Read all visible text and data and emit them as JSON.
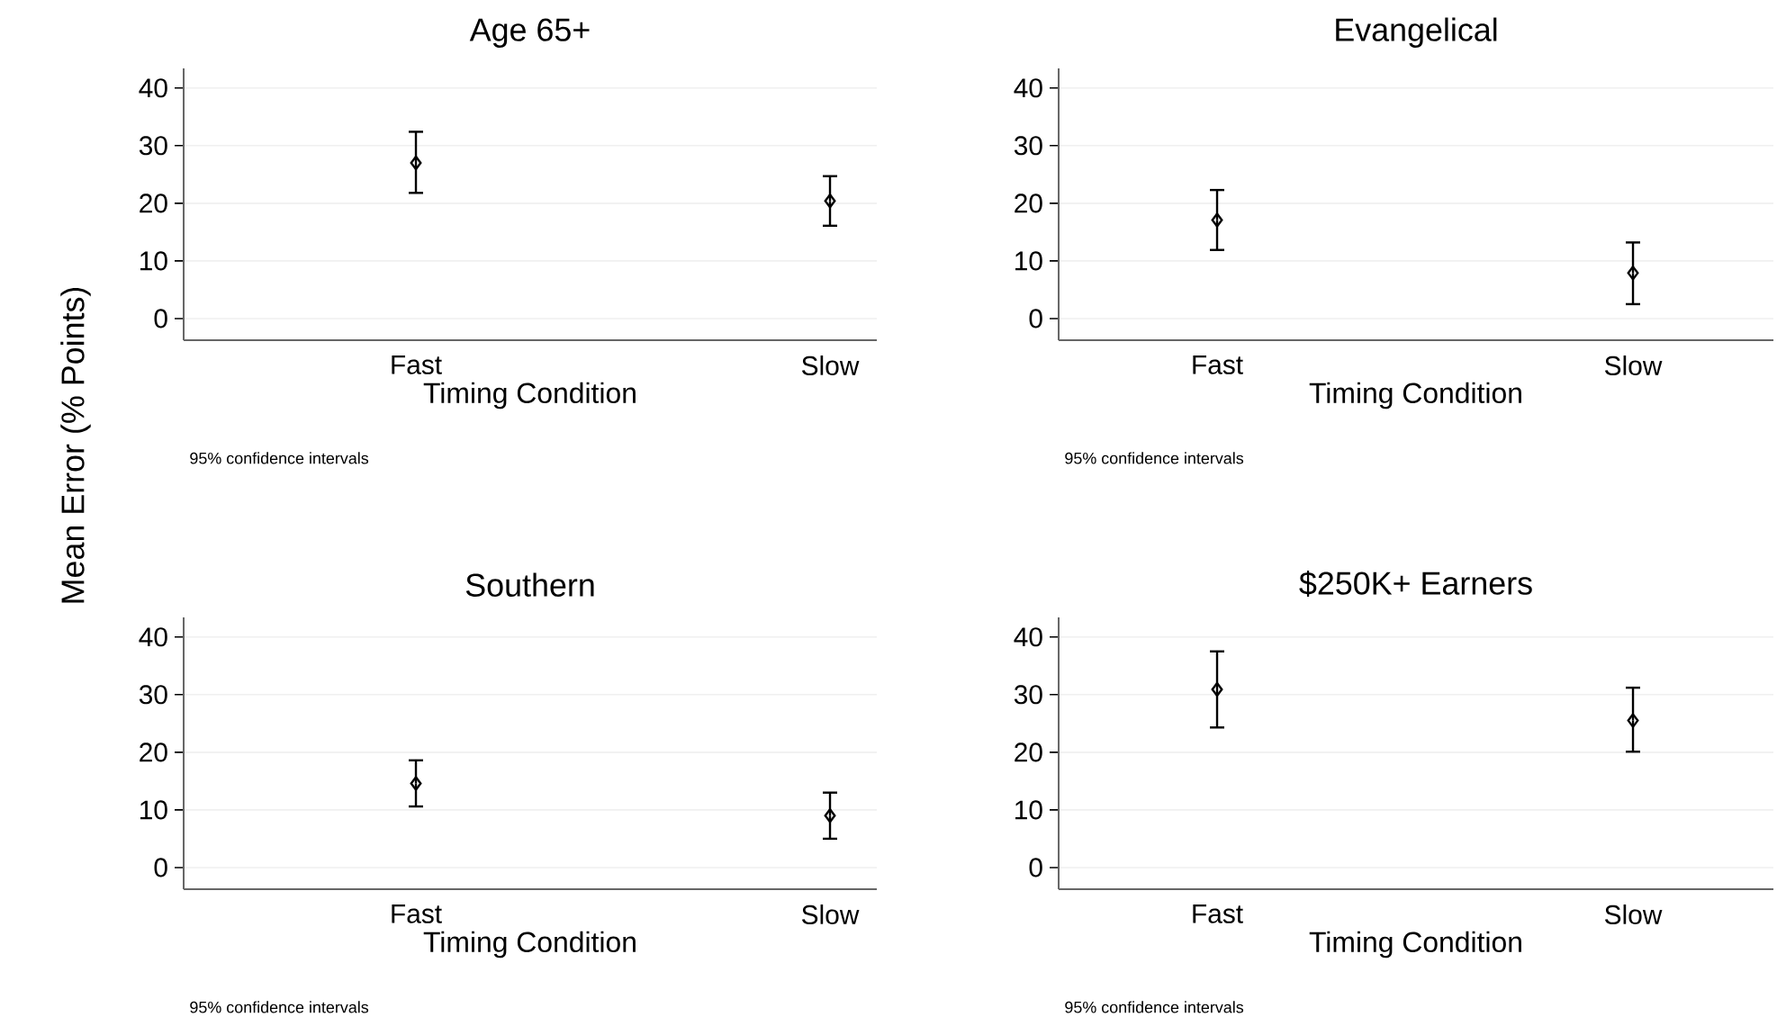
{
  "chart_data": [
    {
      "type": "scatter",
      "title": "Age 65+",
      "xlabel": "Timing Condition",
      "ylabel": "Mean Error (% Points)",
      "categories": [
        "Fast",
        "Slow"
      ],
      "values": [
        27.0,
        20.4
      ],
      "errors": [
        [
          21.8,
          32.4
        ],
        [
          16.1,
          24.7
        ]
      ],
      "color": "#000000",
      "marker": "diamond",
      "ylim": [
        -3.75,
        43.4
      ],
      "yticks": [
        0,
        10,
        20,
        30,
        40
      ],
      "grid": "y",
      "annotations": [
        "95% confidence intervals"
      ]
    },
    {
      "type": "scatter",
      "title": "Evangelical",
      "xlabel": "Timing Condition",
      "categories": [
        "Fast",
        "Slow"
      ],
      "values": [
        17.1,
        7.9
      ],
      "errors": [
        [
          11.9,
          22.3
        ],
        [
          2.5,
          13.2
        ]
      ],
      "color": "#000000",
      "marker": "diamond",
      "ylim": [
        -3.75,
        43.4
      ],
      "yticks": [
        0,
        10,
        20,
        30,
        40
      ],
      "grid": "y",
      "annotations": [
        "95% confidence intervals"
      ]
    },
    {
      "type": "scatter",
      "title": "Southern",
      "xlabel": "Timing Condition",
      "categories": [
        "Fast",
        "Slow"
      ],
      "values": [
        14.6,
        9.0
      ],
      "errors": [
        [
          10.6,
          18.6
        ],
        [
          5.0,
          13.0
        ]
      ],
      "color": "#000000",
      "marker": "diamond",
      "ylim": [
        -3.75,
        43.4
      ],
      "yticks": [
        0,
        10,
        20,
        30,
        40
      ],
      "grid": "y",
      "annotations": [
        "95% confidence intervals"
      ]
    },
    {
      "type": "scatter",
      "title": "$250K+ Earners",
      "xlabel": "Timing Condition",
      "categories": [
        "Fast",
        "Slow"
      ],
      "values": [
        30.9,
        25.5
      ],
      "errors": [
        [
          24.3,
          37.5
        ],
        [
          20.1,
          31.2
        ]
      ],
      "color": "#000000",
      "marker": "diamond",
      "ylim": [
        -3.75,
        43.4
      ],
      "yticks": [
        0,
        10,
        20,
        30,
        40
      ],
      "grid": "y",
      "annotations": [
        "95% confidence intervals"
      ]
    }
  ]
}
